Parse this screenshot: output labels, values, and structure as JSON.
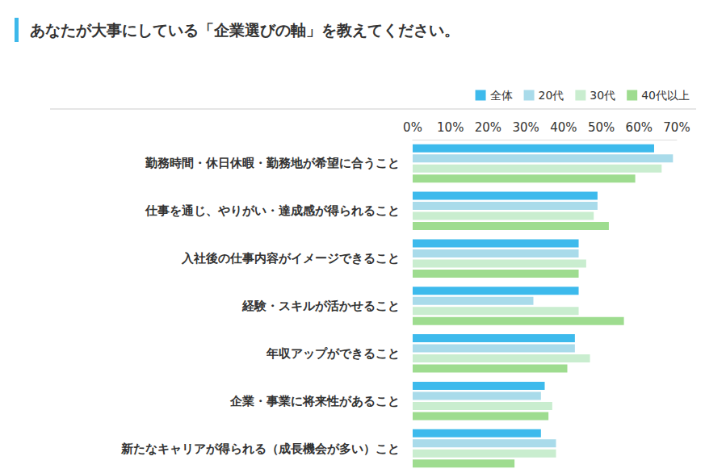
{
  "chart_data": {
    "type": "bar",
    "title": "あなたが大事にしている「企業選びの軸」を教えてください。",
    "orientation": "horizontal",
    "categories": [
      "勤務時間・休日休暇・勤務地が希望に合うこと",
      "仕事を通じ、やりがい・達成感が得られること",
      "入社後の仕事内容がイメージできること",
      "経験・スキルが活かせること",
      "年収アップができること",
      "企業・事業に将来性があること",
      "新たなキャリアが得られる（成長機会が多い）こと"
    ],
    "series": [
      {
        "name": "全体",
        "color": "#3dbaec",
        "values": [
          64,
          49,
          44,
          44,
          43,
          35,
          34
        ]
      },
      {
        "name": "20代",
        "color": "#a9dbea",
        "values": [
          69,
          49,
          44,
          32,
          43,
          34,
          38
        ]
      },
      {
        "name": "30代",
        "color": "#c9edcf",
        "values": [
          66,
          48,
          46,
          44,
          47,
          37,
          38
        ]
      },
      {
        "name": "40代以上",
        "color": "#9edc8f",
        "values": [
          59,
          52,
          44,
          56,
          41,
          36,
          27
        ]
      }
    ],
    "xlim": [
      0,
      70
    ],
    "xticks": [
      {
        "value": 0,
        "label": "0%"
      },
      {
        "value": 10,
        "label": "10%"
      },
      {
        "value": 20,
        "label": "20%"
      },
      {
        "value": 30,
        "label": "30%"
      },
      {
        "value": 40,
        "label": "40%"
      },
      {
        "value": 50,
        "label": "50%"
      },
      {
        "value": 60,
        "label": "60%"
      },
      {
        "value": 70,
        "label": "70%"
      }
    ],
    "legend": "top-right",
    "grid": false
  }
}
